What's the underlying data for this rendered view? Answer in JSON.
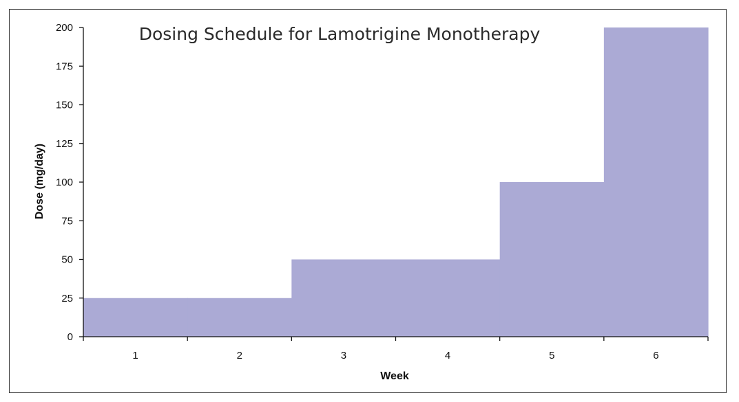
{
  "chart_data": {
    "type": "area",
    "step": true,
    "title": "Dosing Schedule for Lamotrigine Monotherapy",
    "xlabel": "Week",
    "ylabel": "Dose (mg/day)",
    "categories": [
      "1",
      "2",
      "3",
      "4",
      "5",
      "6"
    ],
    "values": [
      25,
      25,
      50,
      50,
      100,
      200
    ],
    "ylim": [
      0,
      200
    ],
    "yticks": [
      0,
      25,
      50,
      75,
      100,
      125,
      150,
      175,
      200
    ],
    "grid": false,
    "legend": "none",
    "fill_color": "#abaad5",
    "axis_color": "#111111"
  }
}
